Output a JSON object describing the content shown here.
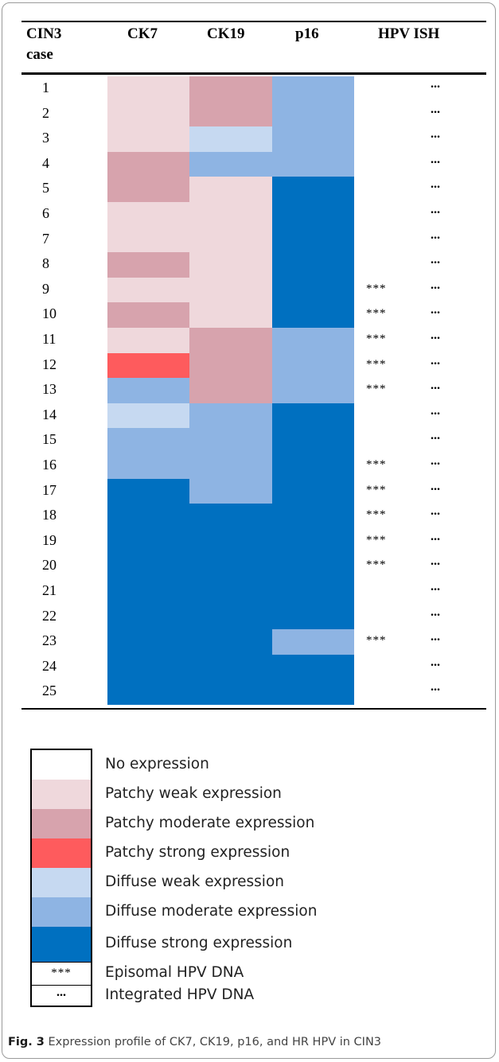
{
  "table": {
    "headers": [
      "CIN3",
      "CK7",
      "CK19",
      "p16",
      "HPV ISH"
    ],
    "header_case_line2": "case",
    "rows": [
      {
        "case": "1",
        "ck7": "patchy_weak",
        "ck19": "patchy_moderate",
        "p16": "diffuse_moderate",
        "episomal": "",
        "integrated": "..."
      },
      {
        "case": "2",
        "ck7": "patchy_weak",
        "ck19": "patchy_moderate",
        "p16": "diffuse_moderate",
        "episomal": "",
        "integrated": "..."
      },
      {
        "case": "3",
        "ck7": "patchy_weak",
        "ck19": "diffuse_weak",
        "p16": "diffuse_moderate",
        "episomal": "",
        "integrated": "..."
      },
      {
        "case": "4",
        "ck7": "patchy_moderate",
        "ck19": "diffuse_moderate",
        "p16": "diffuse_moderate",
        "episomal": "",
        "integrated": "..."
      },
      {
        "case": "5",
        "ck7": "patchy_moderate",
        "ck19": "patchy_weak",
        "p16": "diffuse_strong",
        "episomal": "",
        "integrated": "..."
      },
      {
        "case": "6",
        "ck7": "patchy_weak",
        "ck19": "patchy_weak",
        "p16": "diffuse_strong",
        "episomal": "",
        "integrated": "..."
      },
      {
        "case": "7",
        "ck7": "patchy_weak",
        "ck19": "patchy_weak",
        "p16": "diffuse_strong",
        "episomal": "",
        "integrated": "..."
      },
      {
        "case": "8",
        "ck7": "patchy_moderate",
        "ck19": "patchy_weak",
        "p16": "diffuse_strong",
        "episomal": "",
        "integrated": "..."
      },
      {
        "case": "9",
        "ck7": "patchy_weak",
        "ck19": "patchy_weak",
        "p16": "diffuse_strong",
        "episomal": "***",
        "integrated": "..."
      },
      {
        "case": "10",
        "ck7": "patchy_moderate",
        "ck19": "patchy_weak",
        "p16": "diffuse_strong",
        "episomal": "***",
        "integrated": "..."
      },
      {
        "case": "11",
        "ck7": "patchy_weak",
        "ck19": "patchy_moderate",
        "p16": "diffuse_moderate",
        "episomal": "***",
        "integrated": "..."
      },
      {
        "case": "12",
        "ck7": "patchy_strong",
        "ck19": "patchy_moderate",
        "p16": "diffuse_moderate",
        "episomal": "***",
        "integrated": "..."
      },
      {
        "case": "13",
        "ck7": "diffuse_moderate",
        "ck19": "patchy_moderate",
        "p16": "diffuse_moderate",
        "episomal": "***",
        "integrated": "..."
      },
      {
        "case": "14",
        "ck7": "diffuse_weak",
        "ck19": "diffuse_moderate",
        "p16": "diffuse_strong",
        "episomal": "",
        "integrated": "..."
      },
      {
        "case": "15",
        "ck7": "diffuse_moderate",
        "ck19": "diffuse_moderate",
        "p16": "diffuse_strong",
        "episomal": "",
        "integrated": "..."
      },
      {
        "case": "16",
        "ck7": "diffuse_moderate",
        "ck19": "diffuse_moderate",
        "p16": "diffuse_strong",
        "episomal": "***",
        "integrated": "..."
      },
      {
        "case": "17",
        "ck7": "diffuse_strong",
        "ck19": "diffuse_moderate",
        "p16": "diffuse_strong",
        "episomal": "***",
        "integrated": "..."
      },
      {
        "case": "18",
        "ck7": "diffuse_strong",
        "ck19": "diffuse_strong",
        "p16": "diffuse_strong",
        "episomal": "***",
        "integrated": "..."
      },
      {
        "case": "19",
        "ck7": "diffuse_strong",
        "ck19": "diffuse_strong",
        "p16": "diffuse_strong",
        "episomal": "***",
        "integrated": "..."
      },
      {
        "case": "20",
        "ck7": "diffuse_strong",
        "ck19": "diffuse_strong",
        "p16": "diffuse_strong",
        "episomal": "***",
        "integrated": "..."
      },
      {
        "case": "21",
        "ck7": "diffuse_strong",
        "ck19": "diffuse_strong",
        "p16": "diffuse_strong",
        "episomal": "",
        "integrated": "..."
      },
      {
        "case": "22",
        "ck7": "diffuse_strong",
        "ck19": "diffuse_strong",
        "p16": "diffuse_strong",
        "episomal": "",
        "integrated": "..."
      },
      {
        "case": "23",
        "ck7": "diffuse_strong",
        "ck19": "diffuse_strong",
        "p16": "diffuse_moderate",
        "episomal": "***",
        "integrated": "..."
      },
      {
        "case": "24",
        "ck7": "diffuse_strong",
        "ck19": "diffuse_strong",
        "p16": "diffuse_strong",
        "episomal": "",
        "integrated": "..."
      },
      {
        "case": "25",
        "ck7": "diffuse_strong",
        "ck19": "diffuse_strong",
        "p16": "diffuse_strong",
        "episomal": "",
        "integrated": "..."
      }
    ]
  },
  "colors": {
    "none": "#ffffff",
    "patchy_weak": "#efd8dc",
    "patchy_moderate": "#d7a3ad",
    "patchy_strong": "#fe5b5d",
    "diffuse_weak": "#c6d9f1",
    "diffuse_moderate": "#8eb4e3",
    "diffuse_strong": "#0070c0"
  },
  "legend": [
    {
      "key": "none",
      "label": "No expression"
    },
    {
      "key": "patchy_weak",
      "label": "Patchy weak expression"
    },
    {
      "key": "patchy_moderate",
      "label": "Patchy moderate expression"
    },
    {
      "key": "patchy_strong",
      "label": "Patchy strong expression"
    },
    {
      "key": "diffuse_weak",
      "label": "Diffuse weak expression"
    },
    {
      "key": "diffuse_moderate",
      "label": "Diffuse moderate expression"
    },
    {
      "key": "diffuse_strong",
      "label": "Diffuse strong expression"
    },
    {
      "key": "episomal",
      "symbol": "***",
      "label": "Episomal HPV DNA"
    },
    {
      "key": "integrated",
      "symbol": "...",
      "label": "Integrated HPV DNA"
    }
  ],
  "caption": {
    "label": "Fig. 3",
    "text": "Expression profile of CK7, CK19, p16, and HR HPV in CIN3"
  }
}
